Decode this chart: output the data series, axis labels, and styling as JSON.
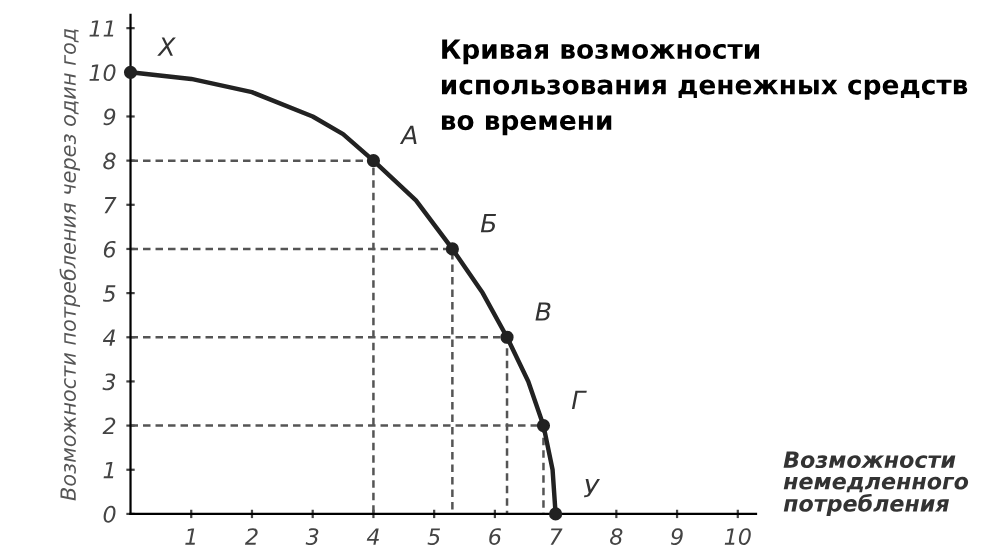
{
  "chart_data": {
    "type": "line",
    "title": "Кривая возможности\nиспользования денежных средств\nво времени",
    "xlabel": "Возможности\nнемедленного\nпотребления",
    "ylabel": "Возможности потребления через один год",
    "series": [
      {
        "color": "#222222",
        "x": [
          0,
          1,
          2,
          3,
          3.5,
          4,
          4.7,
          5.3,
          5.8,
          6.2,
          6.55,
          6.8,
          6.95,
          7
        ],
        "values": [
          10,
          9.85,
          9.55,
          9.0,
          8.6,
          8,
          7.1,
          6,
          5,
          4,
          3,
          2,
          1,
          0
        ],
        "marker": "none",
        "line_style": "solid"
      },
      {
        "type": "scatter",
        "color": "#222222",
        "x": [
          0,
          4,
          5.3,
          6.2,
          6.8,
          7
        ],
        "values": [
          10,
          8,
          6,
          4,
          2,
          0
        ],
        "marker": "circle"
      },
      {
        "color": "#555555",
        "x": [
          0,
          4,
          4
        ],
        "values": [
          8,
          8,
          0
        ],
        "marker": "none",
        "line_style": "dashed"
      },
      {
        "color": "#555555",
        "x": [
          0,
          5.3,
          5.3
        ],
        "values": [
          6,
          6,
          0
        ],
        "marker": "none",
        "line_style": "dashed"
      },
      {
        "color": "#555555",
        "x": [
          0,
          6.2,
          6.2
        ],
        "values": [
          4,
          4,
          0
        ],
        "marker": "none",
        "line_style": "dashed"
      },
      {
        "color": "#555555",
        "x": [
          0,
          6.8,
          6.8
        ],
        "values": [
          2,
          2,
          0
        ],
        "marker": "none",
        "line_style": "dashed"
      }
    ],
    "annotations": [
      {
        "text": "X",
        "x": 0,
        "y": 10
      },
      {
        "text": "А",
        "x": 4,
        "y": 8
      },
      {
        "text": "Б",
        "x": 5.3,
        "y": 6
      },
      {
        "text": "В",
        "x": 6.2,
        "y": 4
      },
      {
        "text": "Г",
        "x": 6.8,
        "y": 2
      },
      {
        "text": "У",
        "x": 7,
        "y": 0
      }
    ],
    "xlim": [
      0,
      10.3
    ],
    "ylim": [
      0,
      11.3
    ],
    "xticks": [
      1,
      2,
      3,
      4,
      5,
      6,
      7,
      8,
      9,
      10
    ],
    "yticks": [
      0,
      1,
      2,
      3,
      4,
      5,
      6,
      7,
      8,
      9,
      10,
      11
    ],
    "grid": false,
    "legend": false
  }
}
